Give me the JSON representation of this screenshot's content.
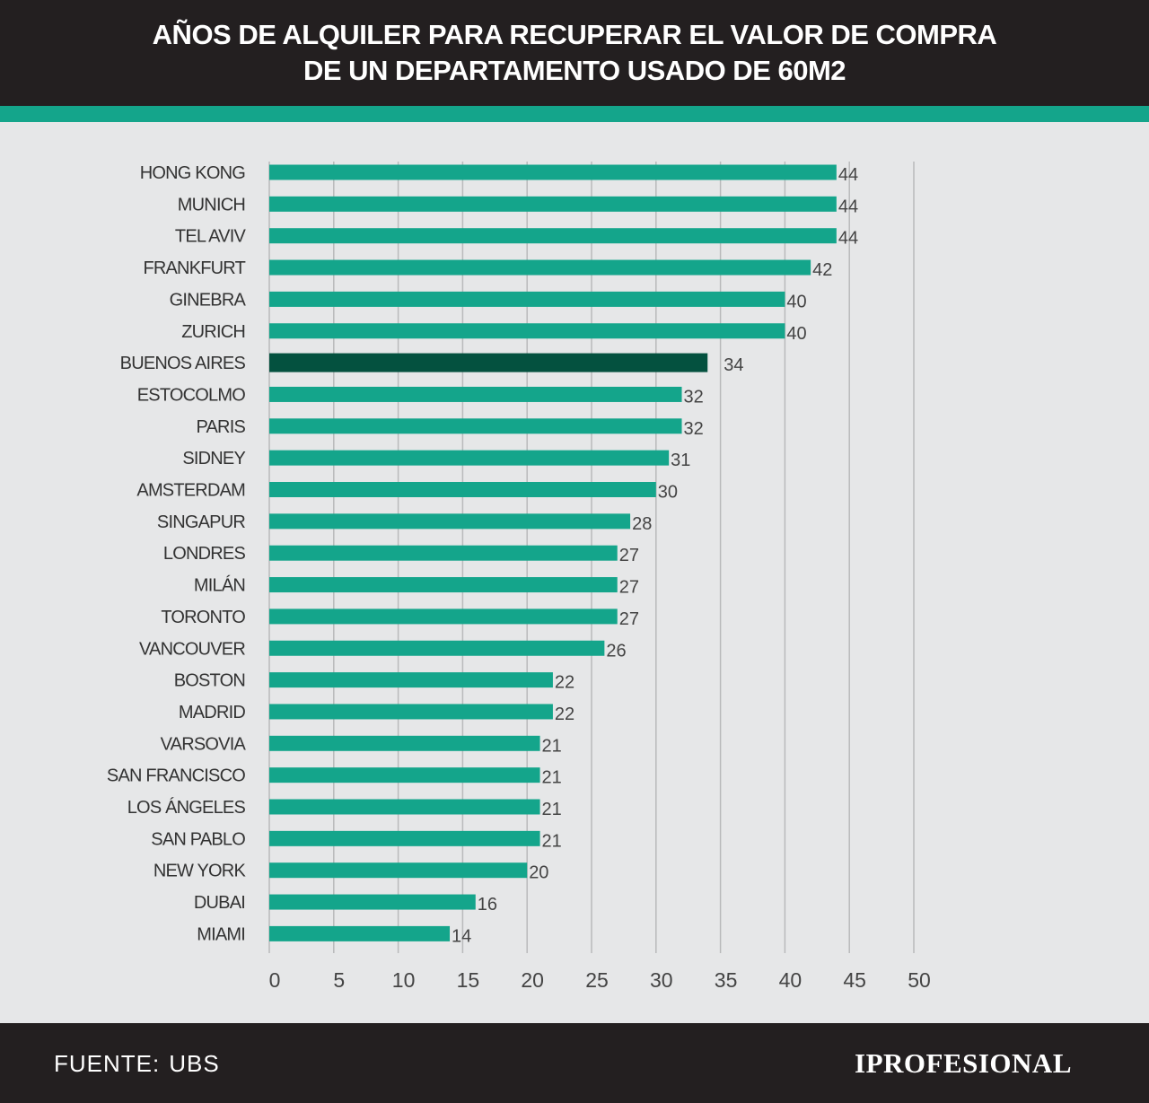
{
  "header": {
    "title_line1": "AÑOS DE ALQUILER PARA RECUPERAR EL VALOR DE COMPRA",
    "title_line2": "DE UN DEPARTAMENTO USADO DE 60M2"
  },
  "footer": {
    "source_label": "FUENTE:",
    "source_value": "UBS",
    "brand": "IPROFESIONAL"
  },
  "colors": {
    "bar": "#14a58b",
    "highlight_bar": "#04513f",
    "header_bg": "#231f20",
    "accent": "#14a58b",
    "background": "#e6e7e8",
    "gridline": "#b9babb"
  },
  "chart_data": {
    "type": "bar",
    "orientation": "horizontal",
    "categories": [
      "HONG KONG",
      "MUNICH",
      "TEL AVIV",
      "FRANKFURT",
      "GINEBRA",
      "ZURICH",
      "BUENOS AIRES",
      "ESTOCOLMO",
      "PARIS",
      "SIDNEY",
      "AMSTERDAM",
      "SINGAPUR",
      "LONDRES",
      "MILÁN",
      "TORONTO",
      "VANCOUVER",
      "BOSTON",
      "MADRID",
      "VARSOVIA",
      "SAN FRANCISCO",
      "LOS ÁNGELES",
      "SAN PABLO",
      "NEW YORK",
      "DUBAI",
      "MIAMI"
    ],
    "values": [
      44,
      44,
      44,
      42,
      40,
      40,
      34,
      32,
      32,
      31,
      30,
      28,
      27,
      27,
      27,
      26,
      22,
      22,
      21,
      21,
      21,
      21,
      20,
      16,
      14
    ],
    "highlight": "BUENOS AIRES",
    "xlim": [
      0,
      50
    ],
    "xticks": [
      0,
      5,
      10,
      15,
      20,
      25,
      30,
      35,
      40,
      45,
      50
    ],
    "grid": true
  }
}
